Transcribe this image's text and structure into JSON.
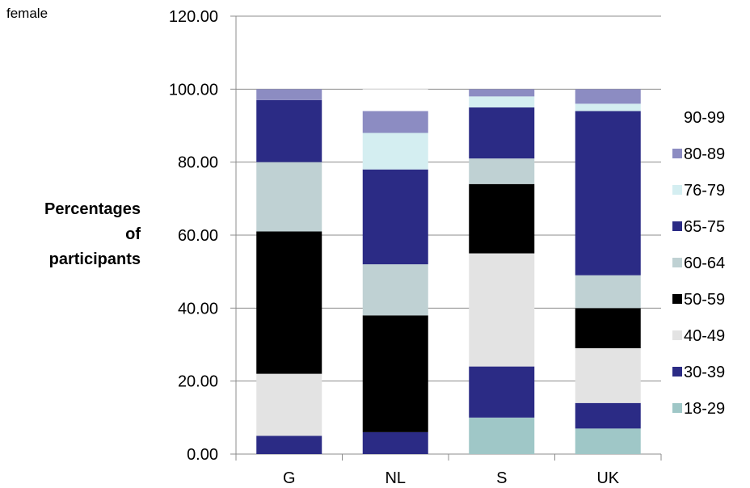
{
  "corner_label": "female",
  "chart_data": {
    "type": "bar",
    "stacked": true,
    "title": "",
    "xlabel": "",
    "ylabel": "Percentages of participants",
    "ylabel_lines": [
      "Percentages",
      "of",
      "participants"
    ],
    "ylim": [
      0,
      120
    ],
    "yticks": [
      "0.00",
      "20.00",
      "40.00",
      "60.00",
      "80.00",
      "100.00",
      "120.00"
    ],
    "grid": "horizontal",
    "legend_position": "right",
    "categories": [
      "G",
      "NL",
      "S",
      "UK"
    ],
    "series": [
      {
        "name": "18-29",
        "color": "#9fc7c7",
        "values": [
          0,
          0,
          10,
          7
        ]
      },
      {
        "name": "30-39",
        "color": "#2b2b85",
        "values": [
          5,
          6,
          14,
          7
        ]
      },
      {
        "name": "40-49",
        "color": "#e3e3e3",
        "values": [
          17,
          0,
          31,
          15
        ]
      },
      {
        "name": "50-59",
        "color": "#000000",
        "values": [
          39,
          32,
          19,
          11
        ]
      },
      {
        "name": "60-64",
        "color": "#bfd1d3",
        "values": [
          19,
          14,
          7,
          9
        ]
      },
      {
        "name": "65-75",
        "color": "#2b2b85",
        "values": [
          17,
          26,
          14,
          45
        ]
      },
      {
        "name": "76-79",
        "color": "#d4eef1",
        "values": [
          0,
          10,
          3,
          2
        ]
      },
      {
        "name": "80-89",
        "color": "#8c8cc2",
        "values": [
          3,
          6,
          2,
          4
        ]
      },
      {
        "name": "90-99",
        "color": "#ffffff",
        "values": [
          0,
          6,
          0,
          0
        ]
      }
    ]
  }
}
